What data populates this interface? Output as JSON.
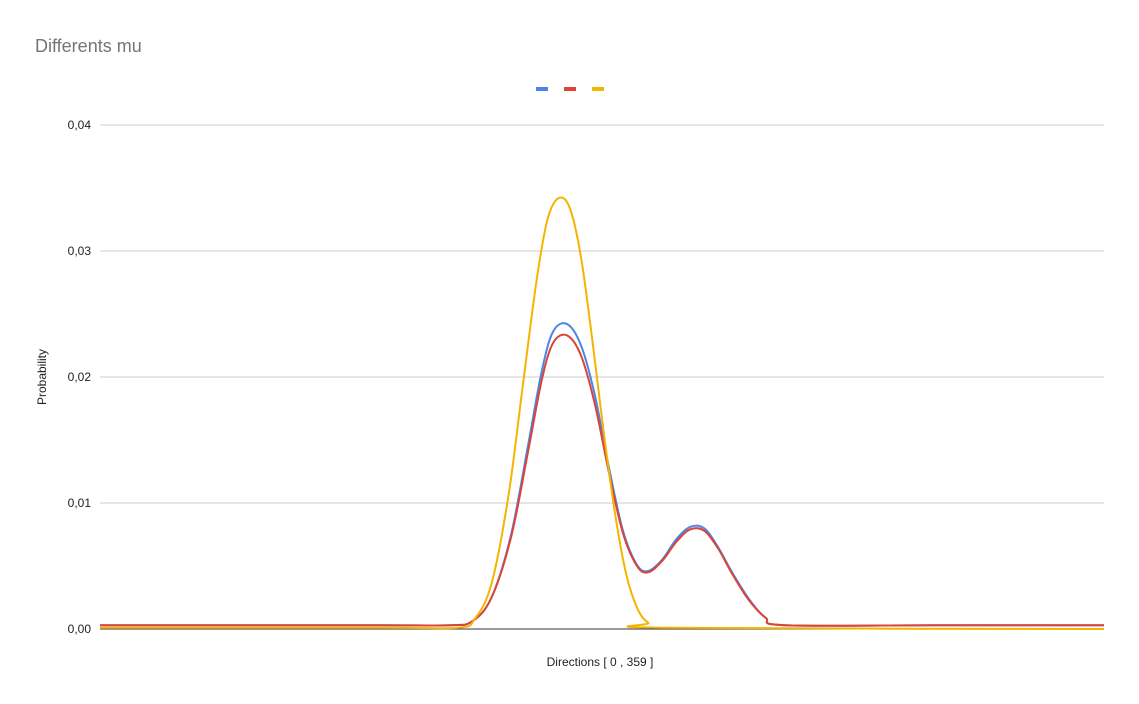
{
  "chart_data": {
    "type": "line",
    "title": "Differents mu",
    "xlabel": "Directions [ 0 , 359 ]",
    "ylabel": "Probability",
    "xlim": [
      0,
      359
    ],
    "ylim": [
      0,
      0.04
    ],
    "yticks": [
      0,
      0.01,
      0.02,
      0.03,
      0.04
    ],
    "ytick_labels": [
      "0,00",
      "0,01",
      "0,02",
      "0,03",
      "0,04"
    ],
    "grid": true,
    "legend_position": "top",
    "series": [
      {
        "color": "#4a86e8",
        "points": [
          [
            0,
            0.0003
          ],
          [
            50,
            0.0003
          ],
          [
            100,
            0.0003
          ],
          [
            125,
            0.0003
          ],
          [
            133,
            0.0006
          ],
          [
            140,
            0.0025
          ],
          [
            147,
            0.0075
          ],
          [
            153,
            0.0145
          ],
          [
            158,
            0.0205
          ],
          [
            162,
            0.0236
          ],
          [
            167,
            0.0242
          ],
          [
            172,
            0.0225
          ],
          [
            177,
            0.0185
          ],
          [
            182,
            0.0128
          ],
          [
            187,
            0.0078
          ],
          [
            192,
            0.0051
          ],
          [
            196,
            0.0046
          ],
          [
            201,
            0.0055
          ],
          [
            206,
            0.0071
          ],
          [
            211,
            0.0081
          ],
          [
            216,
            0.008
          ],
          [
            221,
            0.0065
          ],
          [
            226,
            0.0045
          ],
          [
            232,
            0.0024
          ],
          [
            238,
            0.0009
          ],
          [
            245,
            0.0003
          ],
          [
            300,
            0.0003
          ],
          [
            359,
            0.0003
          ]
        ]
      },
      {
        "color": "#db4437",
        "points": [
          [
            0,
            0.0003
          ],
          [
            50,
            0.0003
          ],
          [
            100,
            0.0003
          ],
          [
            125,
            0.0003
          ],
          [
            133,
            0.0006
          ],
          [
            140,
            0.0025
          ],
          [
            147,
            0.0073
          ],
          [
            153,
            0.014
          ],
          [
            158,
            0.0198
          ],
          [
            162,
            0.0227
          ],
          [
            167,
            0.0233
          ],
          [
            172,
            0.0217
          ],
          [
            177,
            0.0178
          ],
          [
            182,
            0.0124
          ],
          [
            187,
            0.0076
          ],
          [
            192,
            0.005
          ],
          [
            196,
            0.0045
          ],
          [
            201,
            0.0054
          ],
          [
            206,
            0.0069
          ],
          [
            211,
            0.0079
          ],
          [
            216,
            0.0078
          ],
          [
            221,
            0.0064
          ],
          [
            226,
            0.0044
          ],
          [
            232,
            0.0023
          ],
          [
            238,
            0.0009
          ],
          [
            245,
            0.0003
          ],
          [
            300,
            0.0003
          ],
          [
            359,
            0.0003
          ]
        ]
      },
      {
        "color": "#f4b400",
        "points": [
          [
            0,
            0.0001
          ],
          [
            100,
            0.0001
          ],
          [
            128,
            0.0001
          ],
          [
            134,
            0.0008
          ],
          [
            140,
            0.0036
          ],
          [
            146,
            0.0105
          ],
          [
            151,
            0.019
          ],
          [
            156,
            0.0275
          ],
          [
            160,
            0.0325
          ],
          [
            164,
            0.0342
          ],
          [
            168,
            0.0334
          ],
          [
            172,
            0.0295
          ],
          [
            176,
            0.023
          ],
          [
            180,
            0.0158
          ],
          [
            184,
            0.0094
          ],
          [
            188,
            0.0045
          ],
          [
            192,
            0.0017
          ],
          [
            196,
            0.0005
          ],
          [
            202,
            0.0001
          ],
          [
            359,
            0.0
          ]
        ]
      }
    ]
  }
}
